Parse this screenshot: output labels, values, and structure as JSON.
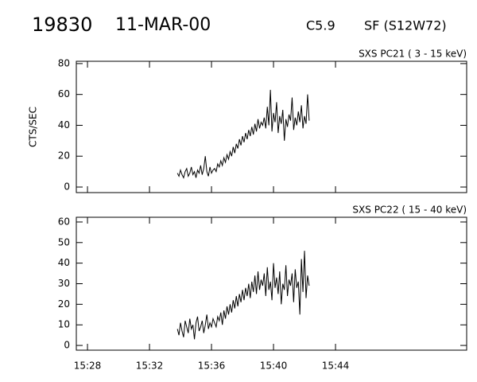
{
  "header": {
    "id": "19830",
    "date": "11-MAR-00",
    "class": "C5.9",
    "location": "SF (S12W72)"
  },
  "chart_data": [
    {
      "type": "line",
      "subtitle": "SXS PC21  (  3 - 15 keV)",
      "ylabel": "CTS/SEC",
      "color": "#000000",
      "x": [
        933.8,
        933.9,
        934,
        934.1,
        934.2,
        934.3,
        934.4,
        934.5,
        934.6,
        934.7,
        934.8,
        934.9,
        935,
        935.1,
        935.2,
        935.3,
        935.4,
        935.5,
        935.6,
        935.7,
        935.8,
        935.9,
        936,
        936.1,
        936.2,
        936.3,
        936.4,
        936.5,
        936.6,
        936.7,
        936.8,
        936.9,
        937,
        937.1,
        937.2,
        937.3,
        937.4,
        937.5,
        937.6,
        937.7,
        937.8,
        937.9,
        938,
        938.1,
        938.2,
        938.3,
        938.4,
        938.5,
        938.6,
        938.7,
        938.8,
        938.9,
        939,
        939.1,
        939.2,
        939.3,
        939.4,
        939.5,
        939.6,
        939.7,
        939.8,
        939.9,
        940,
        940.1,
        940.2,
        940.3,
        940.4,
        940.5,
        940.6,
        940.7,
        940.8,
        940.9,
        941,
        941.1,
        941.2,
        941.3,
        941.4,
        941.5,
        941.6,
        941.7,
        941.8,
        941.9,
        942,
        942.1,
        942.2,
        942.3
      ],
      "values": [
        9,
        7,
        11,
        8,
        6,
        10,
        12,
        7,
        9,
        13,
        8,
        10,
        6,
        11,
        9,
        14,
        8,
        12,
        20,
        10,
        7,
        13,
        9,
        11,
        12,
        10,
        15,
        13,
        17,
        14,
        19,
        16,
        21,
        18,
        23,
        20,
        26,
        22,
        28,
        25,
        31,
        27,
        33,
        29,
        35,
        31,
        37,
        33,
        39,
        34,
        41,
        36,
        44,
        38,
        42,
        40,
        45,
        38,
        52,
        40,
        63,
        36,
        48,
        42,
        55,
        35,
        46,
        41,
        50,
        30,
        44,
        39,
        47,
        43,
        58,
        37,
        45,
        40,
        49,
        42,
        53,
        38,
        46,
        41,
        60,
        43
      ],
      "xlim": [
        927.28,
        952.46
      ],
      "xticks": [
        928,
        932,
        936,
        940,
        944
      ],
      "ylim": [
        -3.6,
        81.5
      ],
      "yticks": [
        0,
        20,
        40,
        60,
        80
      ]
    },
    {
      "type": "line",
      "subtitle": "SXS PC22  ( 15 - 40 keV)",
      "color": "#000000",
      "x": [
        933.8,
        933.9,
        934,
        934.1,
        934.2,
        934.3,
        934.4,
        934.5,
        934.6,
        934.7,
        934.8,
        934.9,
        935,
        935.1,
        935.2,
        935.3,
        935.4,
        935.5,
        935.6,
        935.7,
        935.8,
        935.9,
        936,
        936.1,
        936.2,
        936.3,
        936.4,
        936.5,
        936.6,
        936.7,
        936.8,
        936.9,
        937,
        937.1,
        937.2,
        937.3,
        937.4,
        937.5,
        937.6,
        937.7,
        937.8,
        937.9,
        938,
        938.1,
        938.2,
        938.3,
        938.4,
        938.5,
        938.6,
        938.7,
        938.8,
        938.9,
        939,
        939.1,
        939.2,
        939.3,
        939.4,
        939.5,
        939.6,
        939.7,
        939.8,
        939.9,
        940,
        940.1,
        940.2,
        940.3,
        940.4,
        940.5,
        940.6,
        940.7,
        940.8,
        940.9,
        941,
        941.1,
        941.2,
        941.3,
        941.4,
        941.5,
        941.6,
        941.7,
        941.8,
        941.9,
        942,
        942.1,
        942.2,
        942.3
      ],
      "values": [
        8,
        5,
        11,
        7,
        4,
        12,
        9,
        6,
        13,
        8,
        10,
        3,
        11,
        14,
        7,
        9,
        12,
        6,
        10,
        15,
        8,
        11,
        9,
        13,
        11,
        9,
        14,
        12,
        16,
        10,
        17,
        13,
        19,
        15,
        20,
        16,
        22,
        18,
        24,
        19,
        25,
        21,
        27,
        22,
        28,
        24,
        30,
        23,
        31,
        26,
        34,
        25,
        36,
        27,
        32,
        29,
        35,
        24,
        38,
        27,
        31,
        22,
        40,
        28,
        33,
        25,
        36,
        20,
        30,
        27,
        39,
        24,
        32,
        29,
        35,
        21,
        37,
        28,
        31,
        15,
        42,
        26,
        46,
        23,
        34,
        29
      ],
      "xlim": [
        927.28,
        952.46
      ],
      "xticks": [
        {
          "value": 928,
          "label": "15:28"
        },
        {
          "value": 932,
          "label": "15:32"
        },
        {
          "value": 936,
          "label": "15:36"
        },
        {
          "value": 940,
          "label": "15:40"
        },
        {
          "value": 944,
          "label": "15:44"
        }
      ],
      "ylim": [
        -2.3,
        62.3
      ],
      "yticks": [
        0,
        10,
        20,
        30,
        40,
        50,
        60
      ]
    }
  ]
}
